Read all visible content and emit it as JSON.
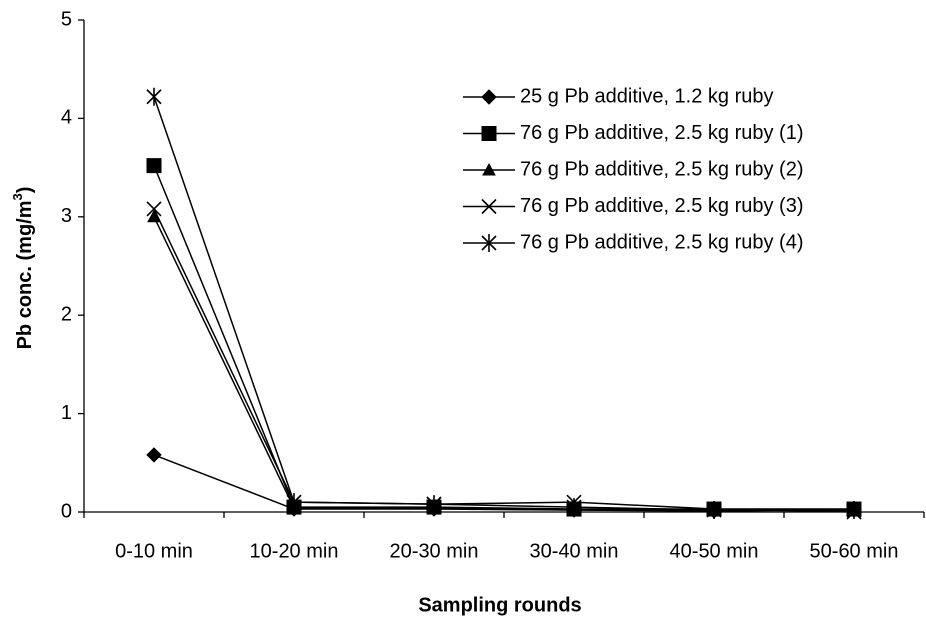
{
  "chart_data": {
    "type": "line",
    "x_label": "Sampling rounds",
    "y_label": "Pb conc. (mg/m",
    "y_label_sup": "3",
    "y_label_end": ")",
    "categories": [
      "0-10 min",
      "10-20 min",
      "20-30 min",
      "30-40 min",
      "40-50 min",
      "50-60 min"
    ],
    "series": [
      {
        "name": "25 g Pb additive, 1.2 kg ruby",
        "color": "#000000",
        "marker": "diamond",
        "values": [
          0.58,
          0.03,
          0.03,
          0.02,
          0.01,
          0.02
        ]
      },
      {
        "name": "76 g Pb additive, 2.5 kg ruby (1)",
        "color": "#000000",
        "marker": "square",
        "values": [
          3.52,
          0.05,
          0.05,
          0.03,
          0.03,
          0.03
        ]
      },
      {
        "name": "76 g Pb additive, 2.5 kg ruby (2)",
        "color": "#000000",
        "marker": "triangle",
        "values": [
          3.0,
          0.04,
          0.04,
          0.02,
          0.02,
          0.02
        ]
      },
      {
        "name": "76 g Pb additive, 2.5 kg ruby (3)",
        "color": "#000000",
        "marker": "x",
        "values": [
          3.08,
          0.1,
          0.08,
          0.1,
          0.03,
          0.0
        ]
      },
      {
        "name": "76 g Pb additive, 2.5 kg ruby (4)",
        "color": "#000000",
        "marker": "star",
        "values": [
          4.22,
          0.1,
          0.08,
          0.05,
          0.02,
          0.02
        ]
      }
    ],
    "ylim": [
      0,
      5
    ],
    "yticks": [
      0,
      1,
      2,
      3,
      4,
      5
    ],
    "grid": false,
    "legend": "upper right"
  }
}
